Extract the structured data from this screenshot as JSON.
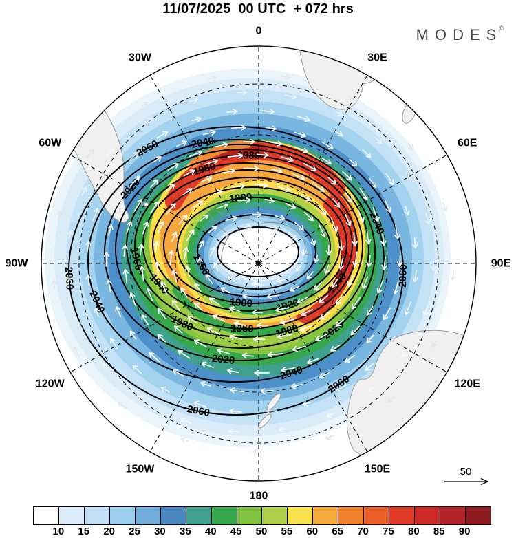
{
  "title": "11/07/2025  00 UTC  + 072 hrs",
  "logo": {
    "text": "MODES",
    "mark": "©"
  },
  "map": {
    "lon_labels": [
      {
        "text": "0",
        "angle": 0
      },
      {
        "text": "30E",
        "angle": 30
      },
      {
        "text": "60E",
        "angle": 60
      },
      {
        "text": "90E",
        "angle": 90
      },
      {
        "text": "120E",
        "angle": 120
      },
      {
        "text": "150E",
        "angle": 150
      },
      {
        "text": "180",
        "angle": 180
      },
      {
        "text": "150W",
        "angle": 210
      },
      {
        "text": "120W",
        "angle": 240
      },
      {
        "text": "90W",
        "angle": 270
      },
      {
        "text": "60W",
        "angle": 300
      },
      {
        "text": "30W",
        "angle": 330
      }
    ],
    "contour_labels": [
      {
        "level": "1860",
        "t": 160
      },
      {
        "level": "1880",
        "t": -100
      },
      {
        "level": "1900",
        "t": 97
      },
      {
        "level": "1920",
        "t": 67
      },
      {
        "level": "1940",
        "t": 148
      },
      {
        "level": "1940",
        "t": 31
      },
      {
        "level": "1960",
        "t": 171
      },
      {
        "level": "1960",
        "t": -112
      },
      {
        "level": "1960",
        "t": 92
      },
      {
        "level": "1980",
        "t": -88
      },
      {
        "level": "1980",
        "t": 122
      },
      {
        "level": "1980",
        "t": 69
      },
      {
        "level": "2020",
        "t": -144
      },
      {
        "level": "2020",
        "t": 97
      },
      {
        "level": "2020",
        "t": 46
      },
      {
        "level": "2040",
        "t": -103
      },
      {
        "level": "2040",
        "t": -18
      },
      {
        "level": "2040",
        "t": 68
      },
      {
        "level": "2040",
        "t": 160
      },
      {
        "level": "2060",
        "t": 177
      },
      {
        "level": "2060",
        "t": -122
      },
      {
        "level": "2060",
        "t": 2
      },
      {
        "level": "2060",
        "t": 103
      },
      {
        "level": "2060",
        "t": 52
      }
    ],
    "reference_vector": {
      "label": "50"
    }
  },
  "colorbar": {
    "colors": [
      "#ffffff",
      "#dcedf9",
      "#c3e1f6",
      "#9dcfee",
      "#72acdb",
      "#4a86c0",
      "#41a08d",
      "#37a84d",
      "#7fc241",
      "#aed04a",
      "#f7e14f",
      "#f5aa3e",
      "#f1832f",
      "#ea5f2a",
      "#dd3b28",
      "#cb2a26",
      "#b02225",
      "#8d1a1f"
    ],
    "ticks": [
      "10",
      "15",
      "20",
      "25",
      "30",
      "35",
      "40",
      "45",
      "50",
      "55",
      "60",
      "65",
      "70",
      "75",
      "80",
      "85",
      "90"
    ]
  },
  "chart_data": {
    "type": "heatmap",
    "title": "11/07/2025 00 UTC + 072 hrs",
    "projection": "south-polar stereographic",
    "shaded_field": "wind speed (shaded, colorbar 10-90 in steps of 5)",
    "colorbar_ticks": [
      10,
      15,
      20,
      25,
      30,
      35,
      40,
      45,
      50,
      55,
      60,
      65,
      70,
      75,
      80,
      85,
      90
    ],
    "contour_field": "geopotential height (black contours)",
    "contour_levels": [
      1840,
      1860,
      1880,
      1900,
      1920,
      1940,
      1960,
      1980,
      2000,
      2020,
      2040,
      2060
    ],
    "contour_interval": 20,
    "vector_field": "wind vectors (white arrows), circumpolar clockwise westerly flow around polar low",
    "reference_vector": 50,
    "longitude_labels": [
      "0",
      "30E",
      "60E",
      "90E",
      "120E",
      "150E",
      "180",
      "150W",
      "120W",
      "90W",
      "60W",
      "30W"
    ],
    "legend_position": "horizontal colorbar at bottom"
  }
}
